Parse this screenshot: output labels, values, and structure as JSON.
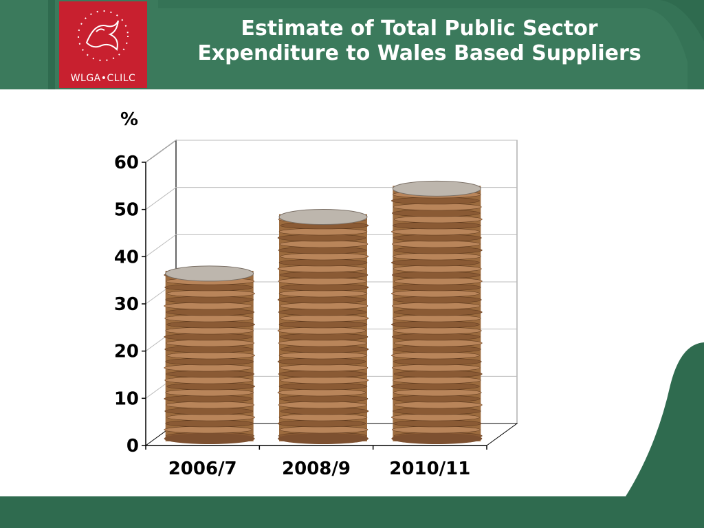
{
  "header": {
    "title_line1": "Estimate of Total Public Sector",
    "title_line2": "Expenditure to Wales Based Suppliers",
    "logo_text": "WLGA•CLILC"
  },
  "colors": {
    "green": "#3b7a5c",
    "dark_green": "#2f6b4f",
    "logo_red": "#c8202f",
    "coin": "#b07a4a"
  },
  "chart_data": {
    "type": "bar",
    "title": "Estimate of Total Public Sector Expenditure to Wales Based Suppliers",
    "ylabel": "%",
    "xlabel": "",
    "categories": [
      "2006/7",
      "2008/9",
      "2010/11"
    ],
    "values": [
      37,
      49,
      55
    ],
    "ylim": [
      0,
      60
    ],
    "yticks": [
      "0",
      "10",
      "20",
      "30",
      "40",
      "50",
      "60"
    ],
    "grid": true,
    "bar_style": "coin-stack"
  }
}
